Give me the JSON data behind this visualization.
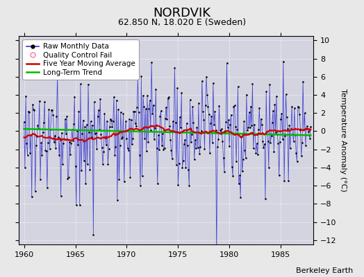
{
  "title": "NORDVIK",
  "subtitle": "62.850 N, 18.020 E (Sweden)",
  "ylabel": "Temperature Anomaly (°C)",
  "credit": "Berkeley Earth",
  "xlim": [
    1959.5,
    1988.2
  ],
  "ylim": [
    -12.5,
    10.5
  ],
  "yticks": [
    -12,
    -10,
    -8,
    -6,
    -4,
    -2,
    0,
    2,
    4,
    6,
    8,
    10
  ],
  "xticks": [
    1960,
    1965,
    1970,
    1975,
    1980,
    1985
  ],
  "outer_bg": "#e8e8e8",
  "plot_bg": "#d4d4e0",
  "raw_color": "#3333cc",
  "raw_dot_color": "#000000",
  "ma_color": "#cc0000",
  "trend_color": "#00bb00",
  "qc_color": "#ff88aa",
  "grid_color": "#ffffff",
  "title_fontsize": 13,
  "subtitle_fontsize": 9,
  "axis_fontsize": 8,
  "ylabel_fontsize": 8,
  "legend_fontsize": 7.5,
  "credit_fontsize": 8
}
